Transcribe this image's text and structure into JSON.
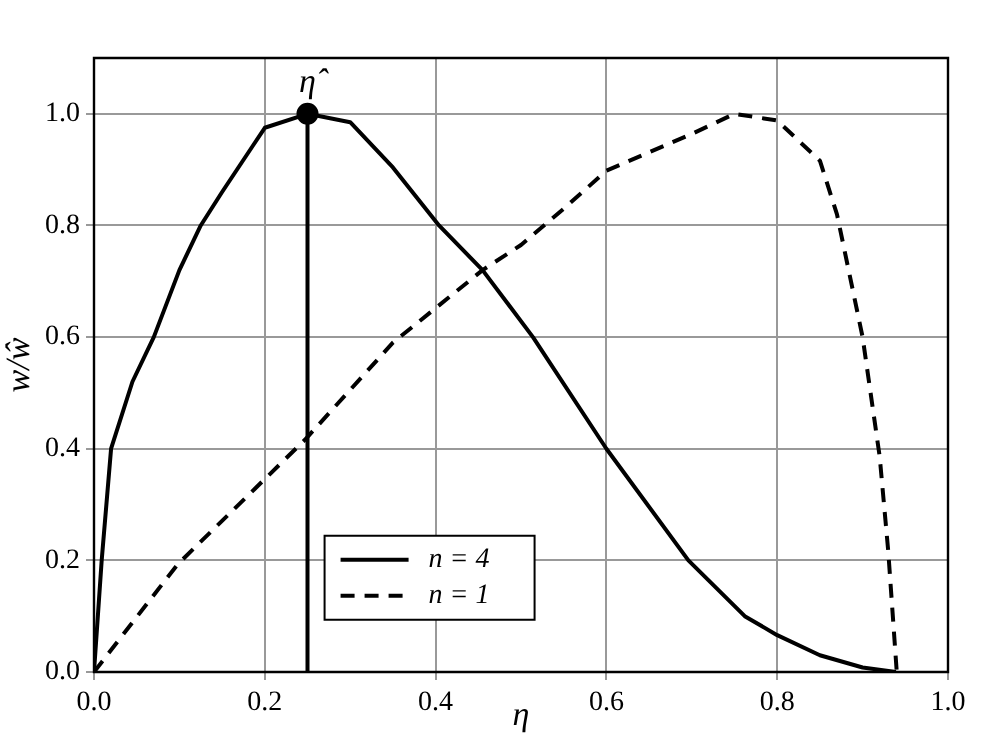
{
  "chart_data": {
    "type": "line",
    "xlabel": "η",
    "ylabel": "w/ŵ",
    "xlim": [
      0,
      1
    ],
    "ylim": [
      0,
      1.1
    ],
    "xticks": [
      {
        "value": 0,
        "label": "0.0"
      },
      {
        "value": 0.2,
        "label": "0.2"
      },
      {
        "value": 0.4,
        "label": "0.4"
      },
      {
        "value": 0.6,
        "label": "0.6"
      },
      {
        "value": 0.8,
        "label": "0.8"
      },
      {
        "value": 1,
        "label": "1.0"
      }
    ],
    "yticks": [
      {
        "value": 0,
        "label": "0.0"
      },
      {
        "value": 0.2,
        "label": "0.2"
      },
      {
        "value": 0.4,
        "label": "0.4"
      },
      {
        "value": 0.6,
        "label": "0.6"
      },
      {
        "value": 0.8,
        "label": "0.8"
      },
      {
        "value": 1,
        "label": "1.0"
      }
    ],
    "grid": true,
    "legend": "bottom",
    "marker": "none",
    "series": [
      {
        "name": "n = 4",
        "color": "#000000",
        "line_style": "solid",
        "x": [
          0,
          0.009,
          0.02,
          0.045,
          0.07,
          0.1,
          0.125,
          0.15,
          0.2,
          0.25,
          0.3,
          0.35,
          0.404,
          0.455,
          0.514,
          0.6,
          0.696,
          0.762,
          0.8,
          0.85,
          0.9,
          0.939
        ],
        "values": [
          0,
          0.2,
          0.4,
          0.52,
          0.6,
          0.72,
          0.8,
          0.86,
          0.975,
          1,
          0.985,
          0.904,
          0.8,
          0.72,
          0.6,
          0.4,
          0.2,
          0.1,
          0.066,
          0.03,
          0.008,
          0
        ]
      },
      {
        "name": "n = 1",
        "color": "#000000",
        "line_style": "dashed",
        "x": [
          0,
          0.098,
          0.247,
          0.35,
          0.455,
          0.5,
          0.55,
          0.6,
          0.7,
          0.75,
          0.8,
          0.85,
          0.87,
          0.9,
          0.92,
          0.93,
          0.94
        ],
        "values": [
          0,
          0.193,
          0.416,
          0.59,
          0.72,
          0.765,
          0.83,
          0.898,
          0.964,
          1,
          0.988,
          0.916,
          0.82,
          0.6,
          0.386,
          0.217,
          0
        ]
      },
      {
        "type": "line",
        "color": "#000000",
        "line_style": "solid",
        "x": [
          0.25,
          0.25
        ],
        "values": [
          0,
          1
        ]
      },
      {
        "type": "scatter",
        "color": "#000000",
        "marker": "circle",
        "x": [
          0.25
        ],
        "values": [
          1
        ]
      }
    ],
    "annotations": [
      {
        "text": "η̂",
        "x": 0.25,
        "y": 1
      }
    ]
  }
}
